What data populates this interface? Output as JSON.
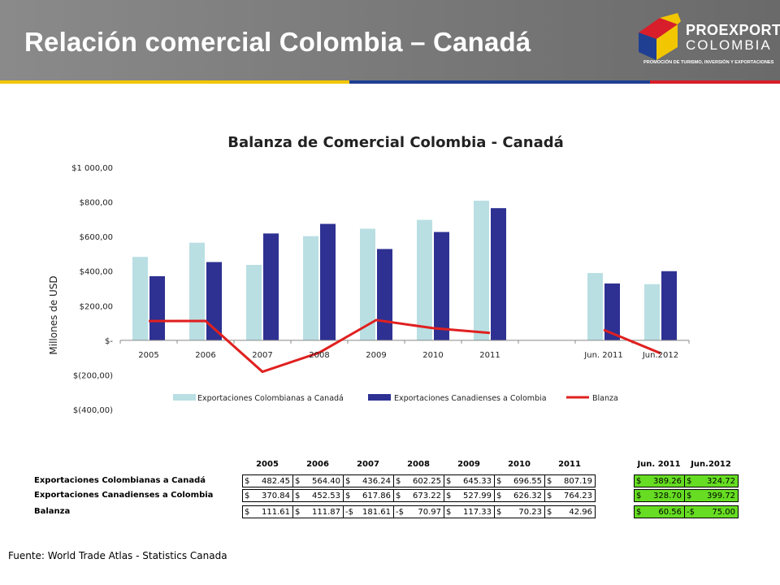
{
  "header": {
    "title": "Relación comercial Colombia – Canadá",
    "stripe_colors": [
      "#f2c600",
      "#1f3f92",
      "#d81e2a"
    ]
  },
  "logo": {
    "name": "PROEXPORT",
    "country": "COLOMBIA",
    "tagline": "PROMOCIÓN DE TURISMO, INVERSIÓN Y EXPORTACIONES"
  },
  "chart_data": {
    "type": "bar",
    "title": "Balanza de Comercial Colombia - Canadá",
    "ylabel": "Millones de USD",
    "xlabel": "",
    "ylim": [
      -400,
      1000
    ],
    "yticks": [
      1000,
      800,
      600,
      400,
      200,
      0,
      -200,
      -400
    ],
    "ytick_labels": [
      "$1 000,00",
      "$800,00",
      "$600,00",
      "$400,00",
      "$200,00",
      "$-",
      "$(200,00)",
      "$(400,00)"
    ],
    "categories": [
      "2005",
      "2006",
      "2007",
      "2008",
      "2009",
      "2010",
      "2011",
      "",
      "Jun. 2011",
      "Jun.2012"
    ],
    "series": [
      {
        "name": "Exportaciones Colombianas a Canadá",
        "kind": "bar",
        "color": "#b9dfe3",
        "values": [
          482.45,
          564.4,
          436.24,
          602.25,
          645.33,
          696.55,
          807.19,
          null,
          389.26,
          324.72
        ]
      },
      {
        "name": "Exportaciones Canadienses a Colombia",
        "kind": "bar",
        "color": "#2e3192",
        "values": [
          370.84,
          452.53,
          617.86,
          673.22,
          527.99,
          626.32,
          764.23,
          null,
          328.7,
          399.72
        ]
      },
      {
        "name": "Blanza",
        "kind": "line",
        "color": "#e02020",
        "values": [
          111.61,
          111.87,
          -181.61,
          -70.97,
          117.33,
          70.23,
          42.96,
          null,
          60.56,
          -75.0
        ]
      }
    ],
    "legend_position": "bottom",
    "grid": false
  },
  "table": {
    "headers": [
      "2005",
      "2006",
      "2007",
      "2008",
      "2009",
      "2010",
      "2011",
      "",
      "Jun. 2011",
      "Jun.2012"
    ],
    "rows": [
      {
        "label": "Exportaciones Colombianas a Canadá",
        "cells": [
          [
            "$",
            "482.45"
          ],
          [
            "$",
            "564.40"
          ],
          [
            "$",
            "436.24"
          ],
          [
            "$",
            "602.25"
          ],
          [
            "$",
            "645.33"
          ],
          [
            "$",
            "696.55"
          ],
          [
            "$",
            "807.19"
          ],
          [
            "",
            ""
          ],
          [
            "$",
            "389.26"
          ],
          [
            "$",
            "324.72"
          ]
        ]
      },
      {
        "label": "Exportaciones Canadienses a Colombia",
        "cells": [
          [
            "$",
            "370.84"
          ],
          [
            "$",
            "452.53"
          ],
          [
            "$",
            "617.86"
          ],
          [
            "$",
            "673.22"
          ],
          [
            "$",
            "527.99"
          ],
          [
            "$",
            "626.32"
          ],
          [
            "$",
            "764.23"
          ],
          [
            "",
            ""
          ],
          [
            "$",
            "328.70"
          ],
          [
            "$",
            "399.72"
          ]
        ]
      },
      {
        "label": "Balanza",
        "cells": [
          [
            "$",
            "111.61"
          ],
          [
            "$",
            "111.87"
          ],
          [
            "-$",
            "181.61"
          ],
          [
            "-$",
            "70.97"
          ],
          [
            "$",
            "117.33"
          ],
          [
            "$",
            "70.23"
          ],
          [
            "$",
            "42.96"
          ],
          [
            "",
            ""
          ],
          [
            "$",
            "60.56"
          ],
          [
            "-$",
            "75.00"
          ]
        ]
      }
    ],
    "highlight_color": "#66dd22"
  },
  "footer": {
    "source": "Fuente: World Trade Atlas - Statistics Canada"
  }
}
